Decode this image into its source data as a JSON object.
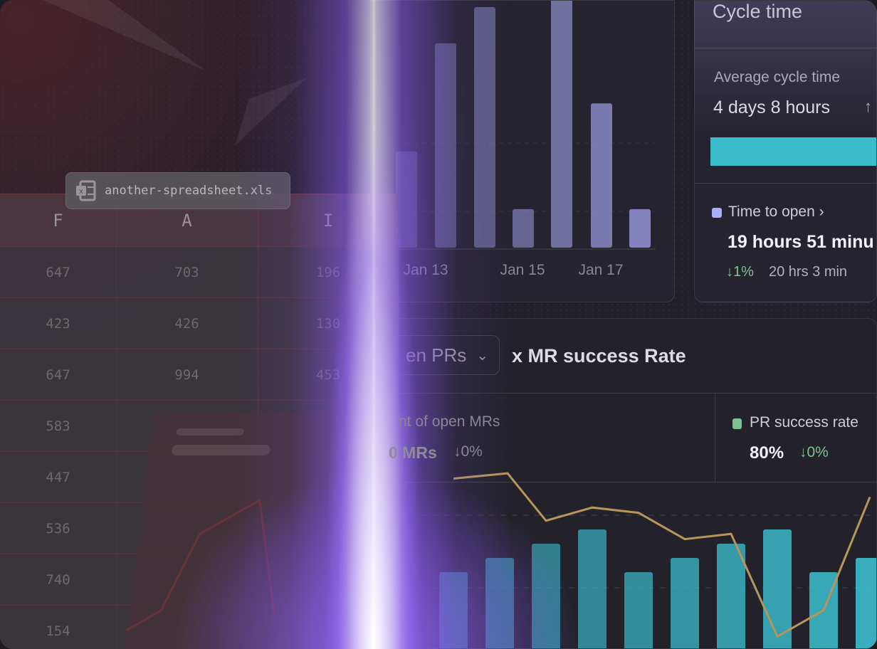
{
  "spreadsheet": {
    "file_name": "another-spreadsheet.xls",
    "file_icon": "excel-icon",
    "columns": [
      "F",
      "A",
      "I"
    ],
    "rows": [
      [
        "647",
        "703",
        "196"
      ],
      [
        "423",
        "426",
        "130"
      ],
      [
        "647",
        "994",
        "453"
      ],
      [
        "583",
        "",
        ""
      ],
      [
        "447",
        "",
        ""
      ],
      [
        "536",
        "",
        ""
      ],
      [
        "740",
        "",
        ""
      ],
      [
        "154",
        "",
        ""
      ]
    ]
  },
  "bar_chart": {
    "x_labels": [
      "Jan 13",
      "Jan 15",
      "Jan 17"
    ],
    "bar_color": "#8f8fd0"
  },
  "cycle_time": {
    "title": "Cycle time",
    "average_label": "Average cycle time",
    "average_value": "4 days 8 hours",
    "average_trend_icon": "arrow-up-icon",
    "bar_color": "#3bbccd",
    "time_to_open_label": "Time to open",
    "time_to_open_value": "19 hours 51 minu",
    "time_to_open_change": "↓1%",
    "time_to_open_previous": "20 hrs 3 min",
    "legend_color": "#aab0f5"
  },
  "mr_panel": {
    "dropdown_label": "en PRs",
    "title": "x MR success Rate",
    "open_mrs_label": "nt of open MRs",
    "open_mrs_value": "0 MRs",
    "open_mrs_change": "↓0%",
    "success_label": "PR success rate",
    "success_value": "80%",
    "success_change": "↓0%",
    "success_color": "#7cc48f",
    "bar_color": "#3ab5c6",
    "line_color": "#b8955a"
  },
  "chart_data": [
    {
      "type": "bar",
      "categories": [
        "",
        "",
        "Jan 13",
        "",
        "Jan 15",
        "",
        "Jan 17",
        ""
      ],
      "values": [
        40,
        85,
        100,
        16,
        110,
        60,
        16,
        0
      ],
      "xlabel": "",
      "ylabel": ""
    },
    {
      "type": "bar+line",
      "bar_values": [
        3,
        4,
        5,
        6,
        3,
        4,
        5,
        6,
        3,
        4
      ],
      "line_values": [
        6.5,
        6.7,
        4.9,
        5.4,
        5.2,
        4.2,
        4.4,
        0.5,
        1.5,
        5.8
      ],
      "xlabel": "",
      "ylabel": ""
    }
  ]
}
